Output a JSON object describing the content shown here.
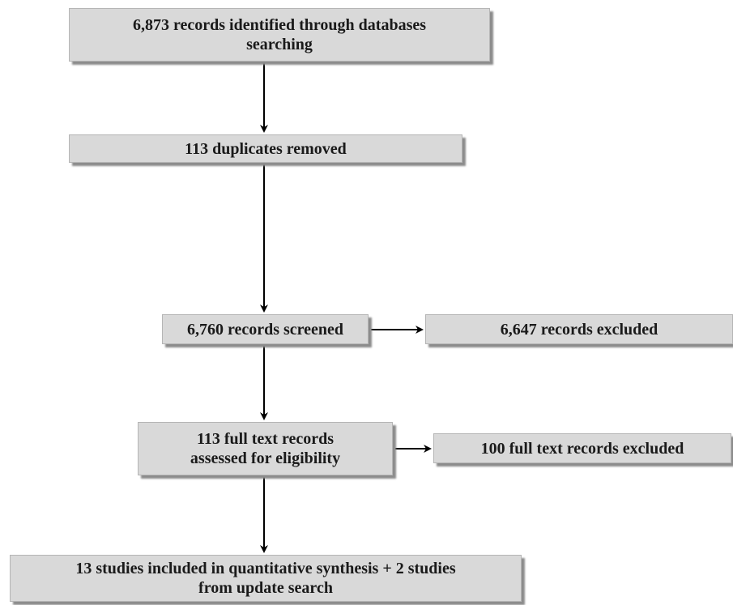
{
  "flow": {
    "records_identified": "6,873 records identified through databases\nsearching",
    "duplicates_removed": "113 duplicates removed",
    "records_screened": "6,760 records screened",
    "records_excluded": "6,647 records excluded",
    "fulltext_assessed": "113 full text records\nassessed for eligibility",
    "fulltext_excluded": "100 full text records excluded",
    "studies_included": "13 studies included in quantitative synthesis + 2 studies\nfrom update search"
  },
  "colors": {
    "box_fill": "#d9d9d9",
    "box_shadow": "#8c8c8c",
    "arrow": "#000000"
  }
}
